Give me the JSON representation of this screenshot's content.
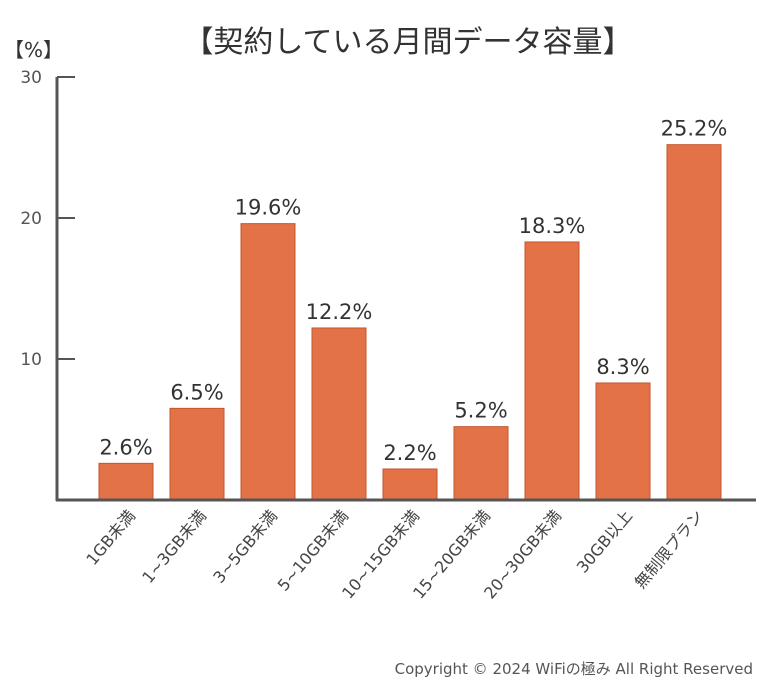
{
  "chart_data": {
    "type": "bar",
    "title": "【契約している月間データ容量】",
    "ylabel": "【%】",
    "xlabel": "",
    "ylim": [
      0,
      30
    ],
    "yticks": [
      "10",
      "20",
      "30"
    ],
    "grid": false,
    "legend": "none",
    "categories": [
      "1GB未満",
      "1~3GB未満",
      "3~5GB未満",
      "5~10GB未満",
      "10~15GB未満",
      "15~20GB未満",
      "20~30GB未満",
      "30GB以上",
      "無制限プラン"
    ],
    "values": [
      2.6,
      6.5,
      19.6,
      12.2,
      2.2,
      5.2,
      18.3,
      8.3,
      25.2
    ],
    "value_labels": [
      "2.6%",
      "6.5%",
      "19.6%",
      "12.2%",
      "2.2%",
      "5.2%",
      "18.3%",
      "8.3%",
      "25.2%"
    ],
    "colors": {
      "bar": "#e37246",
      "bar_edge": "#c4552c",
      "axis": "#555555"
    }
  },
  "footer": {
    "copyright": "Copyright © 2024 WiFiの極み All Right Reserved"
  }
}
